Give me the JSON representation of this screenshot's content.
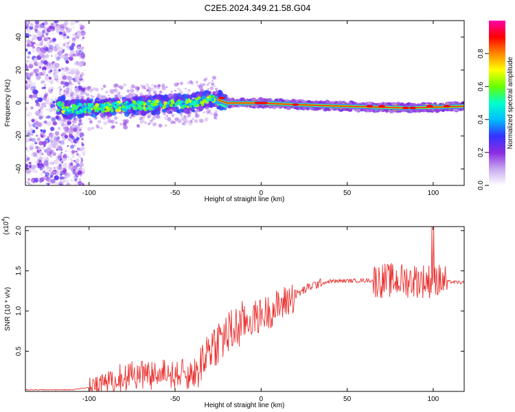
{
  "title": "C2E5.2024.349.21.58.G04",
  "chart_data": [
    {
      "type": "heatmap",
      "xlabel": "Height of straight line (km)",
      "ylabel": "Frequency (Hz)",
      "xlim": [
        -137,
        118
      ],
      "ylim": [
        -50,
        50
      ],
      "x_ticks": [
        -100,
        -50,
        0,
        50,
        100
      ],
      "y_ticks": [
        -40,
        -20,
        0,
        20,
        40
      ],
      "colorbar": {
        "label": "Normalized spectral amplitude",
        "range": [
          0,
          1
        ],
        "ticks": [
          "0.0",
          "0.2",
          "0.4",
          "0.6",
          "0.8"
        ],
        "colors": [
          "#ffffff",
          "#c8a8f0",
          "#8a2be2",
          "#3333ff",
          "#00bfff",
          "#00ffcc",
          "#66ff00",
          "#ffff00",
          "#ff8800",
          "#ff0000",
          "#ff00aa"
        ]
      },
      "trace": {
        "description_points": [
          {
            "x": -115,
            "y": -4
          },
          {
            "x": -100,
            "y": -3
          },
          {
            "x": -80,
            "y": -2
          },
          {
            "x": -60,
            "y": -1
          },
          {
            "x": -40,
            "y": 0
          },
          {
            "x": -28,
            "y": 3
          },
          {
            "x": -20,
            "y": 0
          },
          {
            "x": 0,
            "y": 0
          },
          {
            "x": 20,
            "y": -1
          },
          {
            "x": 50,
            "y": -2
          },
          {
            "x": 85,
            "y": -3
          },
          {
            "x": 118,
            "y": -2
          }
        ]
      }
    },
    {
      "type": "line",
      "xlabel": "Height of straight line (km)",
      "ylabel": "SNR (10 * v/v)",
      "multiplier": "(x10",
      "multiplier_exp": "4",
      "xlim": [
        -137,
        118
      ],
      "ylim": [
        0,
        2.05
      ],
      "x_ticks": [
        -100,
        -50,
        0,
        50,
        100
      ],
      "y_ticks": [
        "0.5",
        "1.0",
        "1.5",
        "2.0"
      ],
      "color": "#e8302e",
      "envelope": [
        {
          "x": -137,
          "y": 0.02
        },
        {
          "x": -110,
          "y": 0.02
        },
        {
          "x": -100,
          "y": 0.05
        },
        {
          "x": -95,
          "y": 0.2
        },
        {
          "x": -80,
          "y": 0.25
        },
        {
          "x": -50,
          "y": 0.28
        },
        {
          "x": -38,
          "y": 0.3
        },
        {
          "x": -30,
          "y": 0.55
        },
        {
          "x": -20,
          "y": 0.7
        },
        {
          "x": -10,
          "y": 0.85
        },
        {
          "x": 0,
          "y": 0.95
        },
        {
          "x": 10,
          "y": 1.05
        },
        {
          "x": 20,
          "y": 1.2
        },
        {
          "x": 30,
          "y": 1.32
        },
        {
          "x": 40,
          "y": 1.37
        },
        {
          "x": 60,
          "y": 1.38
        },
        {
          "x": 70,
          "y": 1.38
        },
        {
          "x": 90,
          "y": 1.38
        },
        {
          "x": 105,
          "y": 1.37
        },
        {
          "x": 118,
          "y": 1.35
        }
      ]
    }
  ]
}
